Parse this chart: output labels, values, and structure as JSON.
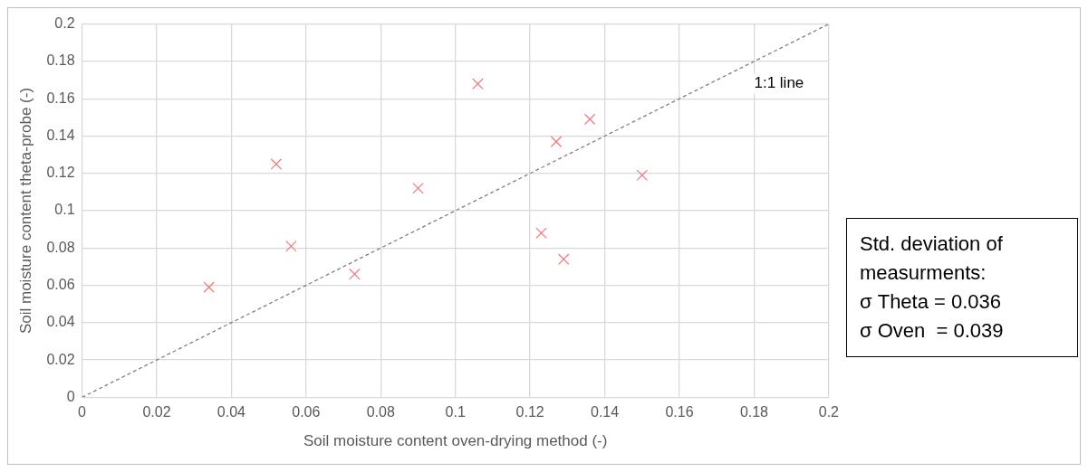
{
  "chart_data": {
    "type": "scatter",
    "xlabel": "Soil moisture content oven-drying method (-)",
    "ylabel": "Soil moisture content theta-probe (-)",
    "xlim": [
      0,
      0.2
    ],
    "xticks": [
      0,
      0.02,
      0.04,
      0.06,
      0.08,
      0.1,
      0.12,
      0.14,
      0.16,
      0.18,
      0.2
    ],
    "ylim": [
      0,
      0.2
    ],
    "yticks": [
      0,
      0.02,
      0.04,
      0.06,
      0.08,
      0.1,
      0.12,
      0.14,
      0.16,
      0.18,
      0.2
    ],
    "grid": true,
    "legend": false,
    "series": [
      {
        "color": "#f4777b",
        "marker": "cross",
        "x": [
          0.034,
          0.052,
          0.056,
          0.073,
          0.09,
          0.106,
          0.123,
          0.127,
          0.129,
          0.136,
          0.15
        ],
        "values": [
          0.059,
          0.125,
          0.081,
          0.066,
          0.112,
          0.168,
          0.088,
          0.137,
          0.074,
          0.149,
          0.119
        ]
      },
      {
        "type": "line",
        "color": "#808080",
        "marker": "none",
        "line_style": "dashed",
        "x": [
          0,
          0.2
        ],
        "values": [
          0,
          0.2
        ]
      }
    ],
    "annotations": [
      "1:1 line",
      "Std. deviation of measurments:",
      "σ Theta = 0.036",
      "σ Oven  = 0.039"
    ]
  }
}
